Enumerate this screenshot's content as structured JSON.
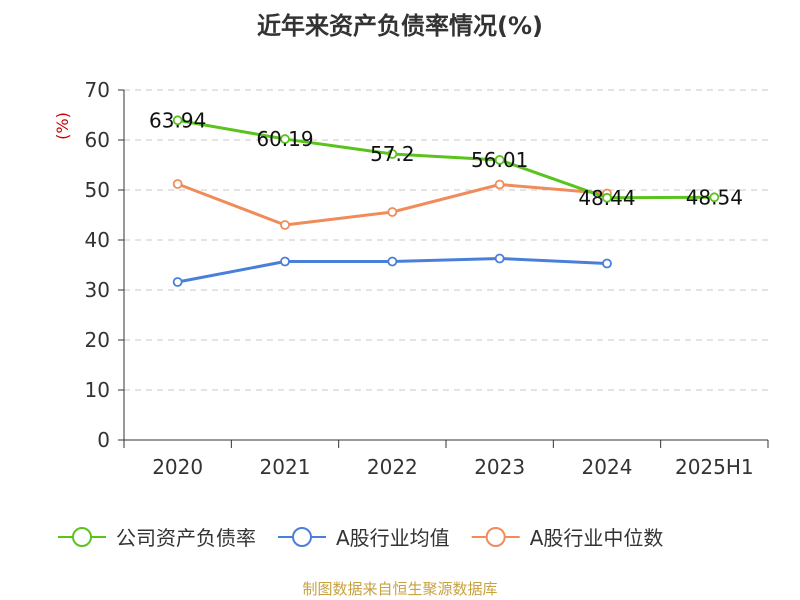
{
  "chart_data": {
    "type": "line",
    "title": "近年来资产负债率情况(%)",
    "ylabel": "(%)",
    "xlabel": "",
    "categories": [
      "2020",
      "2021",
      "2022",
      "2023",
      "2024",
      "2025H1"
    ],
    "ylim": [
      0,
      70
    ],
    "yticks": [
      0,
      10,
      20,
      30,
      40,
      50,
      60,
      70
    ],
    "grid": true,
    "legend_position": "bottom",
    "series": [
      {
        "name": "公司资产负债率",
        "color": "#5ac31e",
        "values": [
          63.94,
          60.19,
          57.2,
          56.01,
          48.44,
          48.54
        ],
        "labels": [
          "63.94",
          "60.19",
          "57.2",
          "56.01",
          "48.44",
          "48.54"
        ]
      },
      {
        "name": "A股行业均值",
        "color": "#4a7fd9",
        "values": [
          31.6,
          35.7,
          35.7,
          36.3,
          35.3,
          null
        ]
      },
      {
        "name": "A股行业中位数",
        "color": "#f08c5a",
        "values": [
          51.2,
          43.0,
          45.6,
          51.1,
          49.3,
          null
        ]
      }
    ]
  },
  "source": "制图数据来自恒生聚源数据库"
}
